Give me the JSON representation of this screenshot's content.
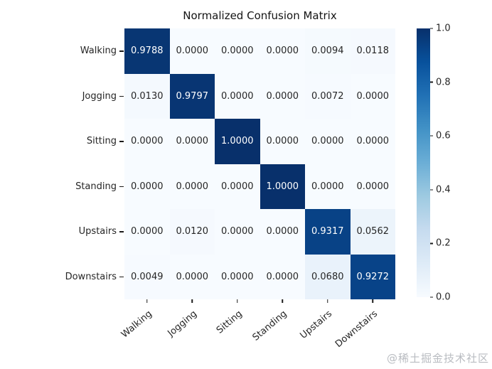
{
  "title": "Normalized Confusion Matrix",
  "watermark": "@稀土掘金技术社区",
  "colors": {
    "background": "#ffffff",
    "annotation_on_dark": "#ffffff",
    "annotation_on_light": "#262626",
    "tick_color": "#1a1a1a",
    "watermark_color": "#b9bcc1"
  },
  "chart_data": {
    "type": "heatmap",
    "title": "Normalized Confusion Matrix",
    "xlabel": "",
    "ylabel": "",
    "categories": [
      "Walking",
      "Jogging",
      "Sitting",
      "Standing",
      "Upstairs",
      "Downstairs"
    ],
    "row_labels": [
      "Walking",
      "Jogging",
      "Sitting",
      "Standing",
      "Upstairs",
      "Downstairs"
    ],
    "col_labels": [
      "Walking",
      "Jogging",
      "Sitting",
      "Standing",
      "Upstairs",
      "Downstairs"
    ],
    "matrix": [
      [
        0.9788,
        0.0,
        0.0,
        0.0,
        0.0094,
        0.0118
      ],
      [
        0.013,
        0.9797,
        0.0,
        0.0,
        0.0072,
        0.0
      ],
      [
        0.0,
        0.0,
        1.0,
        0.0,
        0.0,
        0.0
      ],
      [
        0.0,
        0.0,
        0.0,
        1.0,
        0.0,
        0.0
      ],
      [
        0.0,
        0.012,
        0.0,
        0.0,
        0.9317,
        0.0562
      ],
      [
        0.0049,
        0.0,
        0.0,
        0.0,
        0.068,
        0.9272
      ]
    ],
    "value_format_decimals": 4,
    "colormap": {
      "name": "Blues",
      "stops": [
        {
          "pos": 0.0,
          "color": "#f7fbff"
        },
        {
          "pos": 0.125,
          "color": "#deebf7"
        },
        {
          "pos": 0.25,
          "color": "#c6dbef"
        },
        {
          "pos": 0.375,
          "color": "#9ecae1"
        },
        {
          "pos": 0.5,
          "color": "#6baed6"
        },
        {
          "pos": 0.625,
          "color": "#4292c6"
        },
        {
          "pos": 0.75,
          "color": "#2171b5"
        },
        {
          "pos": 0.875,
          "color": "#08519c"
        },
        {
          "pos": 1.0,
          "color": "#08306b"
        }
      ]
    },
    "colorbar": {
      "min": 0.0,
      "max": 1.0,
      "ticks": [
        "1.0",
        "0.8",
        "0.6",
        "0.4",
        "0.2",
        "0.0"
      ],
      "position": "right"
    },
    "grid": false,
    "x_tick_rotation_deg": 40
  }
}
